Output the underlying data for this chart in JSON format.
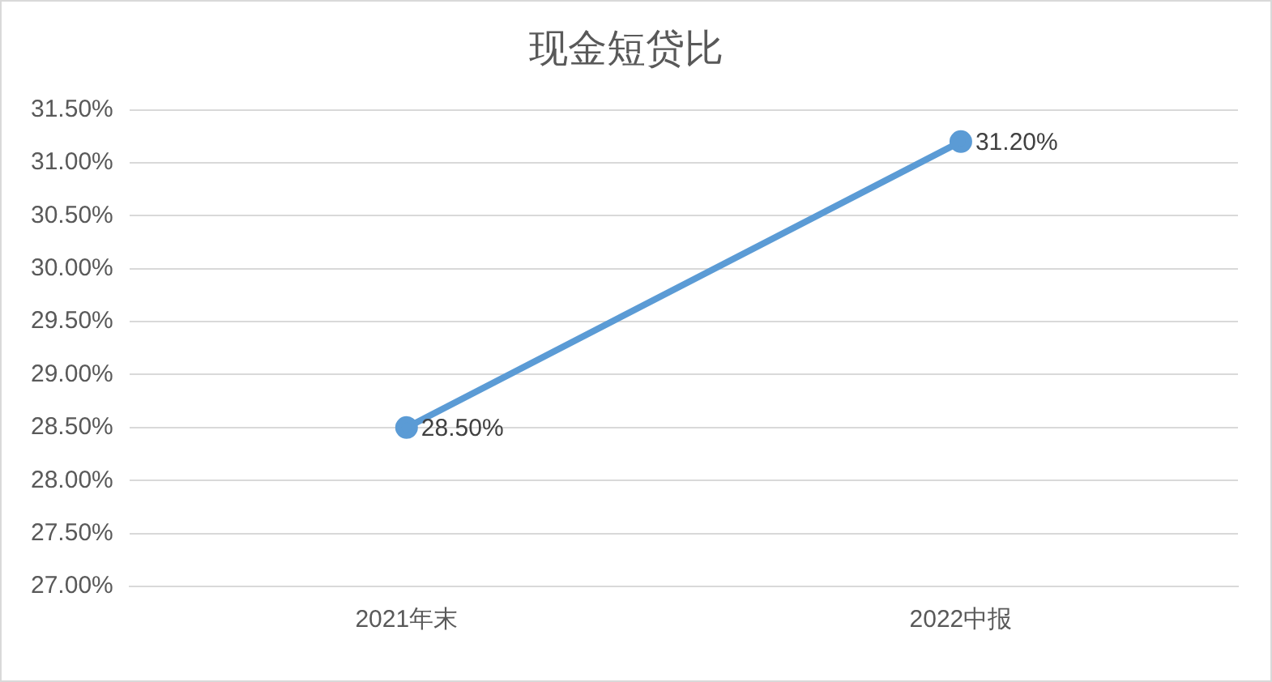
{
  "chart_data": {
    "type": "line",
    "title": "现金短贷比",
    "categories": [
      "2021年末",
      "2022中报"
    ],
    "series": [
      {
        "color": "#5b9bd5",
        "values": [
          28.5,
          31.2
        ],
        "value_labels": [
          "28.50%",
          "31.20%"
        ]
      }
    ],
    "ylim": [
      27,
      31.5
    ],
    "yticks": [
      {
        "value": 27,
        "label": "27.00%"
      },
      {
        "value": 27.5,
        "label": "27.50%"
      },
      {
        "value": 28,
        "label": "28.00%"
      },
      {
        "value": 28.5,
        "label": "28.50%"
      },
      {
        "value": 29,
        "label": "29.00%"
      },
      {
        "value": 29.5,
        "label": "29.50%"
      },
      {
        "value": 30,
        "label": "30.00%"
      },
      {
        "value": 30.5,
        "label": "30.50%"
      },
      {
        "value": 31,
        "label": "31.00%"
      },
      {
        "value": 31.5,
        "label": "31.50%"
      }
    ],
    "grid": "y",
    "marker": "circle",
    "line_style": "solid",
    "legend": false
  }
}
